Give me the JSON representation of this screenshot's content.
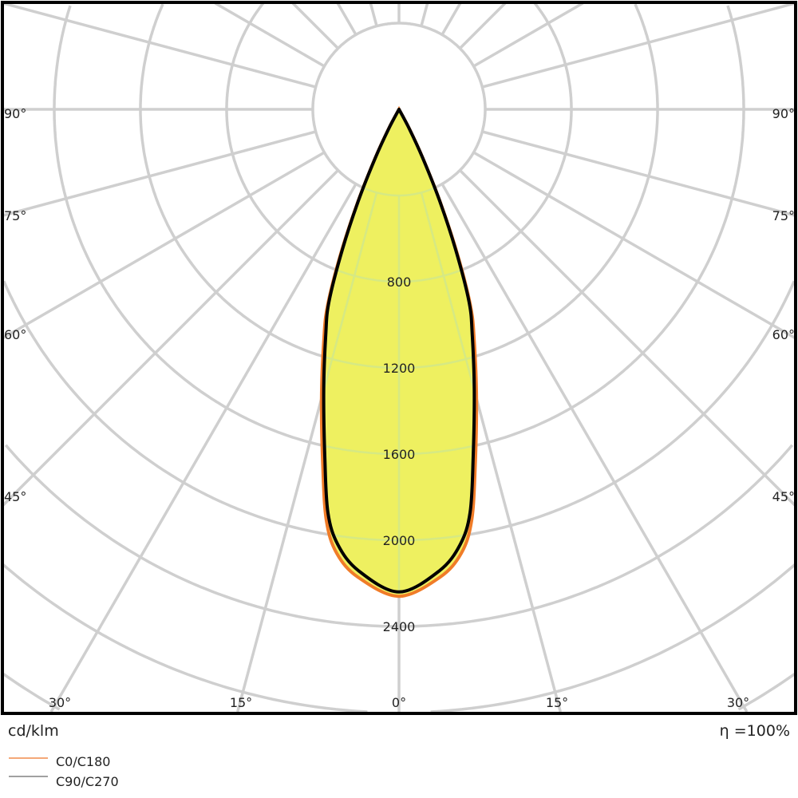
{
  "chart_data": {
    "type": "polar",
    "unit_label": "cd/klm",
    "efficiency_label": "η =100%",
    "radial_ticks": [
      400,
      800,
      1200,
      1600,
      2000,
      2400,
      2800,
      3200,
      3600,
      4000
    ],
    "radial_tick_labels": [
      "800",
      "1200",
      "1600",
      "2000",
      "2400"
    ],
    "angle_labels_bottom": [
      "30°",
      "15°",
      "0°",
      "15°",
      "30°"
    ],
    "angle_labels_side": [
      "90°",
      "75°",
      "60°",
      "45°"
    ],
    "angle_step_deg": 15,
    "grid": true,
    "legend_position": "bottom-left",
    "series": [
      {
        "name": "C0/C180",
        "color": "#f07c28",
        "legend_color": "#f4a878",
        "gamma_deg": [
          0,
          5,
          8,
          10,
          12,
          15,
          18,
          20,
          22,
          24,
          26,
          28,
          30
        ],
        "intensity": [
          2260,
          2180,
          2080,
          1940,
          1700,
          1390,
          1130,
          970,
          720,
          470,
          260,
          110,
          0
        ]
      },
      {
        "name": "C90/C270",
        "color": "#000000",
        "legend_color": "#a0a0a0",
        "gamma_deg": [
          0,
          5,
          8,
          10,
          12,
          15,
          18,
          20,
          22,
          24,
          26,
          28,
          30
        ],
        "intensity": [
          2240,
          2150,
          2040,
          1900,
          1655,
          1350,
          1100,
          950,
          700,
          459,
          250,
          100,
          0
        ]
      }
    ],
    "fill_color": "#eef060"
  }
}
